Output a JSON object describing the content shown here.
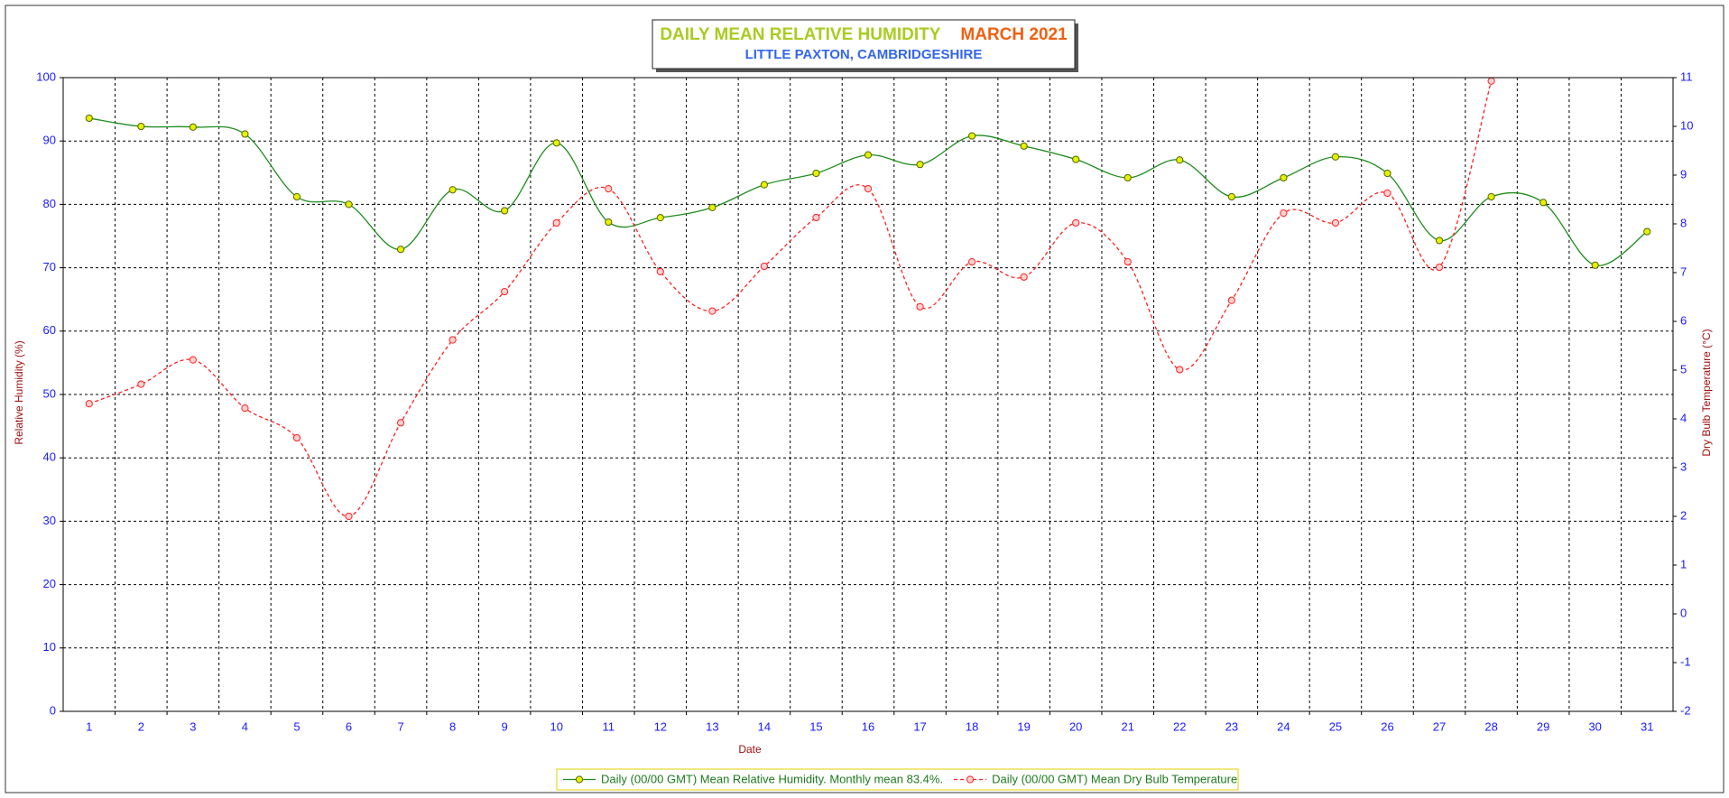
{
  "chart_data": {
    "type": "line",
    "title": "DAILY MEAN RELATIVE HUMIDITY",
    "title_period": "MARCH 2021",
    "subtitle": "LITTLE PAXTON, CAMBRIDGESHIRE",
    "xlabel": "Date",
    "ylabel": "Relative Humidity (%)",
    "y2label": "Dry Bulb Temperature (°C)",
    "categories": [
      "1",
      "2",
      "3",
      "4",
      "5",
      "6",
      "7",
      "8",
      "9",
      "10",
      "11",
      "12",
      "13",
      "14",
      "15",
      "16",
      "17",
      "18",
      "19",
      "20",
      "21",
      "22",
      "23",
      "24",
      "25",
      "26",
      "27",
      "28",
      "29",
      "30",
      "31"
    ],
    "ylim": [
      0,
      100
    ],
    "yticks": [
      0,
      10,
      20,
      30,
      40,
      50,
      60,
      70,
      80,
      90,
      100
    ],
    "y2lim": [
      -2,
      11
    ],
    "y2ticks": [
      -2,
      -1,
      0,
      1,
      2,
      3,
      4,
      5,
      6,
      7,
      8,
      9,
      10,
      11
    ],
    "grid": true,
    "legend": "bottom",
    "series": [
      {
        "name": "Daily (00/00 GMT) Mean Relative Humidity. Monthly mean 83.4%.",
        "color": "#1e8c1e",
        "marker_color": "#e6f000",
        "dashed": false,
        "axis": "y",
        "values": [
          93.6,
          92.3,
          92.2,
          91.1,
          81.2,
          80.0,
          72.9,
          82.3,
          79.0,
          89.7,
          77.2,
          77.9,
          79.5,
          83.1,
          84.9,
          87.8,
          86.3,
          90.8,
          89.2,
          87.1,
          84.2,
          87.0,
          81.2,
          84.2,
          87.5,
          84.9,
          74.3,
          81.2,
          80.3,
          70.4,
          75.7
        ]
      },
      {
        "name": "Daily (00/00 GMT) Mean Dry Bulb Temperature",
        "color": "#ff2020",
        "marker_color": "#ffd0d0",
        "dashed": true,
        "axis": "y2",
        "values": [
          4.31,
          4.71,
          5.21,
          4.22,
          3.61,
          2.0,
          3.92,
          5.62,
          6.61,
          8.02,
          8.72,
          7.02,
          6.21,
          7.13,
          8.13,
          8.72,
          6.3,
          7.22,
          6.91,
          8.02,
          7.22,
          5.01,
          6.43,
          8.22,
          8.02,
          8.63,
          7.11,
          10.93,
          null,
          null,
          null
        ]
      }
    ]
  }
}
